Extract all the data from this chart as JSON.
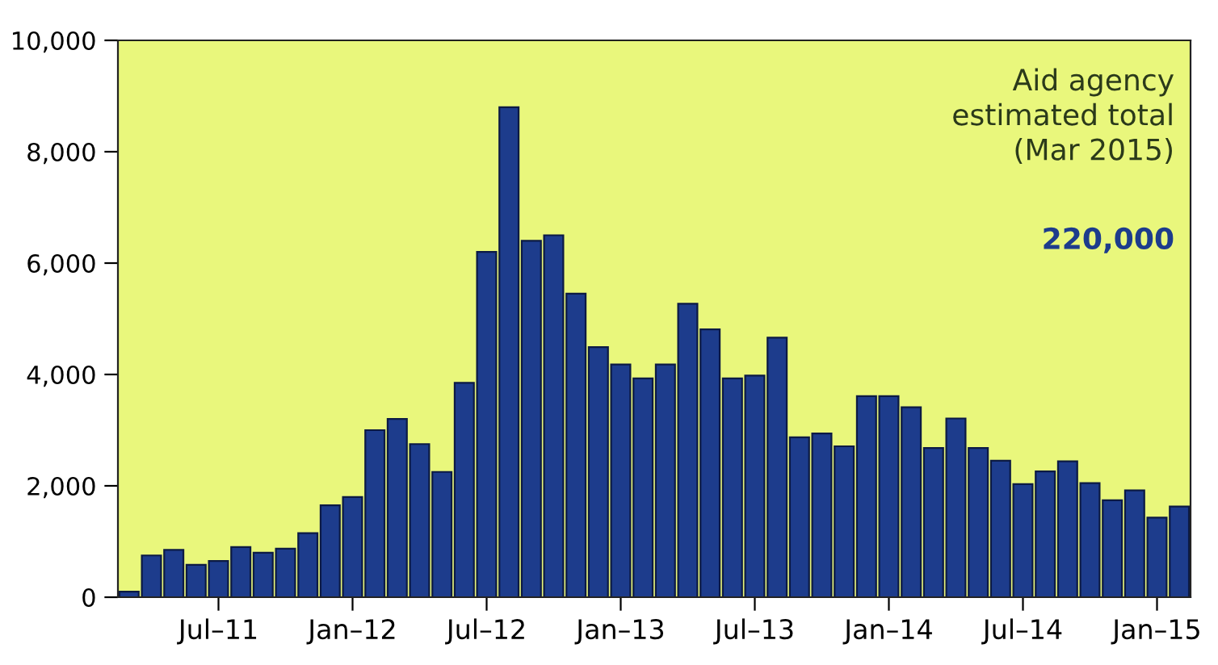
{
  "chart_data": {
    "type": "bar",
    "categories": [
      null,
      null,
      null,
      null,
      "Jul–11",
      null,
      null,
      null,
      null,
      null,
      "Jan–12",
      null,
      null,
      null,
      null,
      null,
      "Jul–12",
      null,
      null,
      null,
      null,
      null,
      "Jan–13",
      null,
      null,
      null,
      null,
      null,
      "Jul–13",
      null,
      null,
      null,
      null,
      null,
      "Jan–14",
      null,
      null,
      null,
      null,
      null,
      "Jul–14",
      null,
      null,
      null,
      null,
      null,
      "Jan–15",
      null
    ],
    "values": [
      100,
      750,
      850,
      580,
      650,
      900,
      800,
      870,
      1150,
      1650,
      1800,
      3000,
      3200,
      2750,
      2250,
      3850,
      6200,
      8800,
      6400,
      6500,
      5450,
      4490,
      4180,
      3930,
      4180,
      5270,
      4810,
      3930,
      3980,
      4660,
      2870,
      2940,
      2710,
      3610,
      3610,
      3410,
      2680,
      3210,
      2680,
      2450,
      2030,
      2260,
      2440,
      2050,
      1740,
      1920,
      1430,
      1630
    ],
    "color": "#1d3c8c",
    "ylim": [
      0,
      10000
    ],
    "yticks": [
      0,
      {
        "value": 2000,
        "label": "2,000"
      },
      {
        "value": 4000,
        "label": "4,000"
      },
      {
        "value": 6000,
        "label": "6,000"
      },
      {
        "value": 8000,
        "label": "8,000"
      },
      {
        "value": 10000,
        "label": "10,000"
      }
    ],
    "grid": false,
    "annotations": [
      "Aid agency\nestimated total\n(Mar 2015)",
      "220,000"
    ]
  }
}
